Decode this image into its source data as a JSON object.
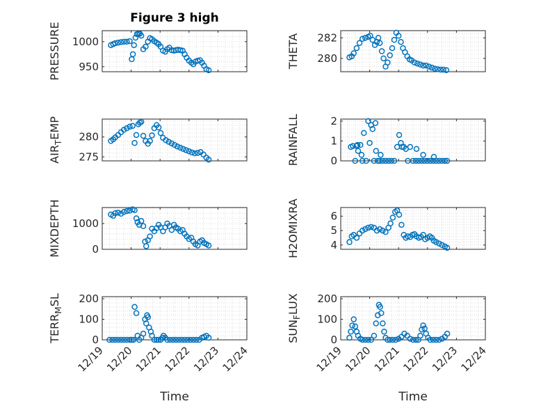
{
  "figure": {
    "title": "Figure 3 high"
  },
  "colors": {
    "marker": "#0072BD",
    "axis": "#262626",
    "grid": "#dcdcdc"
  },
  "chart_data": [
    {
      "type": "scatter",
      "id": "pressure",
      "ylabel": "PRESSURE",
      "xlim": [
        0,
        5
      ],
      "ylim": [
        940,
        1022
      ],
      "yticks": [
        950,
        1000
      ],
      "ytick_labels": [
        "950",
        "1000"
      ],
      "xticks": [
        0,
        1,
        2,
        3,
        4,
        5
      ],
      "xtick_labels": [],
      "grid": true,
      "x": [
        0.3,
        0.38,
        0.45,
        0.55,
        0.65,
        0.75,
        0.85,
        0.95,
        1.02,
        1.06,
        1.1,
        1.15,
        1.2,
        1.25,
        1.3,
        1.35,
        1.42,
        1.5,
        1.58,
        1.65,
        1.72,
        1.8,
        1.88,
        1.95,
        2.02,
        2.1,
        2.18,
        2.25,
        2.32,
        2.4,
        2.48,
        2.55,
        2.62,
        2.7,
        2.78,
        2.85,
        2.92,
        3.0,
        3.08,
        3.15,
        3.22,
        3.3,
        3.38,
        3.45,
        3.52,
        3.6,
        3.68
      ],
      "y": [
        993,
        995,
        997,
        998,
        999,
        1000,
        1000,
        1001,
        965,
        975,
        993,
        1008,
        1015,
        1016,
        1016,
        1012,
        985,
        990,
        1000,
        1007,
        1005,
        1001,
        998,
        995,
        990,
        982,
        980,
        985,
        988,
        983,
        982,
        983,
        984,
        983,
        982,
        975,
        968,
        962,
        958,
        955,
        960,
        962,
        963,
        958,
        952,
        945,
        943
      ]
    },
    {
      "type": "scatter",
      "id": "theta",
      "ylabel": "THETA",
      "xlim": [
        0,
        5
      ],
      "ylim": [
        278.7,
        282.7
      ],
      "yticks": [
        280,
        282
      ],
      "ytick_labels": [
        "280",
        "282"
      ],
      "xticks": [
        0,
        1,
        2,
        3,
        4,
        5
      ],
      "xtick_labels": [],
      "grid": true,
      "x": [
        0.3,
        0.38,
        0.45,
        0.55,
        0.65,
        0.75,
        0.85,
        0.95,
        1.02,
        1.1,
        1.18,
        1.25,
        1.3,
        1.35,
        1.42,
        1.48,
        1.55,
        1.62,
        1.7,
        1.78,
        1.85,
        1.92,
        2.0,
        2.08,
        2.15,
        2.22,
        2.3,
        2.38,
        2.45,
        2.55,
        2.65,
        2.75,
        2.85,
        2.95,
        3.05,
        3.15,
        3.25,
        3.35,
        3.45,
        3.55,
        3.65
      ],
      "y": [
        280.1,
        280.2,
        280.5,
        281.0,
        281.5,
        281.9,
        282.0,
        282.1,
        282.2,
        281.8,
        281.3,
        281.6,
        282.0,
        281.5,
        280.7,
        280.0,
        279.2,
        279.6,
        280.3,
        281.0,
        281.8,
        282.5,
        282.2,
        281.6,
        281.0,
        280.6,
        280.2,
        279.9,
        279.8,
        279.6,
        279.5,
        279.4,
        279.3,
        279.3,
        279.2,
        279.1,
        279.0,
        278.95,
        278.9,
        278.9,
        278.85
      ]
    },
    {
      "type": "scatter",
      "id": "air_temp",
      "ylabel": "AIR_TEMP",
      "xlim": [
        0,
        5
      ],
      "ylim": [
        274,
        284.5
      ],
      "yticks": [
        275,
        280
      ],
      "ytick_labels": [
        "275",
        "280"
      ],
      "xticks": [
        0,
        1,
        2,
        3,
        4,
        5
      ],
      "xtick_labels": [],
      "grid": true,
      "x": [
        0.3,
        0.38,
        0.45,
        0.55,
        0.65,
        0.75,
        0.85,
        0.95,
        1.05,
        1.12,
        1.18,
        1.25,
        1.3,
        1.35,
        1.42,
        1.5,
        1.58,
        1.65,
        1.72,
        1.8,
        1.88,
        1.95,
        2.02,
        2.1,
        2.2,
        2.3,
        2.4,
        2.5,
        2.6,
        2.7,
        2.8,
        2.9,
        3.0,
        3.1,
        3.2,
        3.3,
        3.4,
        3.5,
        3.6,
        3.68
      ],
      "y": [
        279.0,
        279.4,
        279.9,
        280.5,
        281.2,
        281.8,
        282.2,
        282.6,
        282.8,
        278.5,
        280.5,
        283.2,
        283.6,
        283.8,
        280.3,
        279.0,
        278.3,
        279.0,
        280.4,
        282.2,
        283.0,
        282.4,
        281.0,
        279.8,
        279.2,
        278.8,
        278.4,
        278.0,
        277.6,
        277.3,
        277.0,
        276.7,
        276.4,
        276.1,
        275.9,
        276.0,
        276.2,
        275.6,
        274.8,
        274.3
      ]
    },
    {
      "type": "scatter",
      "id": "rainfall",
      "ylabel": "RAINFALL",
      "xlim": [
        0,
        5
      ],
      "ylim": [
        0,
        2.1
      ],
      "yticks": [
        0,
        1,
        2
      ],
      "ytick_labels": [
        "0",
        "1",
        "2"
      ],
      "xticks": [
        0,
        1,
        2,
        3,
        4,
        5
      ],
      "xtick_labels": [],
      "grid": true,
      "x": [
        0.35,
        0.42,
        0.5,
        0.55,
        0.6,
        0.68,
        0.75,
        0.8,
        0.88,
        0.95,
        1.0,
        1.05,
        1.1,
        1.15,
        1.2,
        1.28,
        1.35,
        1.45,
        1.55,
        1.65,
        1.75,
        1.85,
        1.95,
        2.02,
        2.08,
        2.12,
        2.18,
        2.25,
        2.32,
        2.4,
        2.5,
        2.6,
        2.7,
        2.8,
        2.9,
        3.0,
        3.1,
        3.2,
        3.3,
        3.4,
        3.5,
        3.6,
        3.68,
        0.58,
        0.72,
        1.22,
        1.38,
        2.62,
        2.85,
        3.22
      ],
      "y": [
        0.7,
        0.75,
        0.0,
        0.75,
        0.5,
        0.8,
        0.0,
        1.4,
        0.0,
        2.0,
        0.9,
        1.8,
        1.6,
        0.0,
        1.9,
        0.0,
        0.0,
        0.0,
        0.0,
        0.0,
        0.0,
        0.0,
        0.7,
        1.3,
        0.9,
        0.7,
        0.7,
        0.6,
        0.0,
        0.7,
        0.0,
        0.0,
        0.0,
        0.0,
        0.0,
        0.0,
        0.0,
        0.0,
        0.0,
        0.0,
        0.0,
        0.0,
        0.0,
        0.8,
        0.3,
        0.5,
        0.3,
        0.6,
        0.3,
        0.2
      ]
    },
    {
      "type": "scatter",
      "id": "mixdepth",
      "ylabel": "MIXDEPTH",
      "xlim": [
        0,
        5
      ],
      "ylim": [
        0,
        1620
      ],
      "yticks": [
        0,
        1000
      ],
      "ytick_labels": [
        "0",
        "1000"
      ],
      "xticks": [
        0,
        1,
        2,
        3,
        4,
        5
      ],
      "xtick_labels": [],
      "grid": true,
      "x": [
        0.3,
        0.38,
        0.45,
        0.55,
        0.65,
        0.75,
        0.85,
        0.95,
        1.05,
        1.12,
        1.18,
        1.22,
        1.28,
        1.35,
        1.42,
        1.48,
        1.52,
        1.58,
        1.65,
        1.72,
        1.8,
        1.88,
        1.95,
        2.02,
        2.1,
        2.18,
        2.25,
        2.32,
        2.4,
        2.48,
        2.55,
        2.62,
        2.7,
        2.78,
        2.85,
        2.92,
        3.0,
        3.08,
        3.15,
        3.22,
        3.3,
        3.38,
        3.45,
        3.52,
        3.6,
        3.68
      ],
      "y": [
        1350,
        1300,
        1400,
        1420,
        1380,
        1450,
        1480,
        1500,
        1550,
        1520,
        1200,
        1050,
        950,
        1100,
        900,
        300,
        120,
        350,
        500,
        800,
        700,
        820,
        950,
        850,
        700,
        850,
        1000,
        900,
        750,
        950,
        850,
        800,
        700,
        750,
        600,
        500,
        400,
        450,
        300,
        200,
        150,
        300,
        350,
        250,
        200,
        150
      ]
    },
    {
      "type": "scatter",
      "id": "h2omixra",
      "ylabel": "H2OMIXRA",
      "xlim": [
        0,
        5
      ],
      "ylim": [
        3.7,
        6.6
      ],
      "yticks": [
        4,
        5,
        6
      ],
      "ytick_labels": [
        "4",
        "5",
        "6"
      ],
      "xticks": [
        0,
        1,
        2,
        3,
        4,
        5
      ],
      "xtick_labels": [],
      "grid": true,
      "x": [
        0.3,
        0.38,
        0.45,
        0.55,
        0.65,
        0.75,
        0.85,
        0.95,
        1.05,
        1.15,
        1.25,
        1.35,
        1.45,
        1.55,
        1.65,
        1.72,
        1.8,
        1.88,
        1.95,
        2.02,
        2.1,
        2.18,
        2.25,
        2.32,
        2.4,
        2.48,
        2.55,
        2.62,
        2.7,
        2.78,
        2.85,
        2.92,
        3.0,
        3.08,
        3.15,
        3.22,
        3.3,
        3.4,
        3.5,
        3.6,
        3.68
      ],
      "y": [
        4.2,
        4.6,
        4.7,
        4.5,
        4.8,
        5.0,
        5.1,
        5.2,
        5.25,
        5.2,
        5.0,
        5.1,
        5.0,
        4.9,
        5.2,
        5.5,
        5.9,
        6.3,
        6.4,
        6.1,
        5.4,
        4.7,
        4.5,
        4.6,
        4.55,
        4.7,
        4.75,
        4.6,
        4.5,
        4.55,
        4.7,
        4.4,
        4.5,
        4.6,
        4.5,
        4.3,
        4.2,
        4.1,
        4.0,
        3.9,
        3.8
      ]
    },
    {
      "type": "scatter",
      "id": "terr_msl",
      "ylabel": "TERR_MSL",
      "xlim": [
        0,
        5
      ],
      "ylim": [
        0,
        210
      ],
      "yticks": [
        0,
        100,
        200
      ],
      "ytick_labels": [
        "0",
        "100",
        "200"
      ],
      "xticks": [
        0,
        1,
        2,
        3,
        4,
        5
      ],
      "xtick_labels": [
        "12/19",
        "12/20",
        "12/21",
        "12/22",
        "12/23",
        "12/24"
      ],
      "xlabel": "Time",
      "grid": true,
      "x": [
        0.25,
        0.35,
        0.45,
        0.55,
        0.65,
        0.75,
        0.85,
        0.95,
        1.02,
        1.08,
        1.12,
        1.18,
        1.22,
        1.28,
        1.35,
        1.42,
        1.48,
        1.52,
        1.55,
        1.58,
        1.62,
        1.68,
        1.72,
        1.8,
        1.88,
        1.95,
        2.02,
        2.08,
        2.12,
        2.18,
        2.25,
        2.35,
        2.45,
        2.55,
        2.65,
        2.75,
        2.85,
        2.95,
        3.05,
        3.15,
        3.25,
        3.35,
        3.45,
        3.52,
        3.6,
        3.68
      ],
      "y": [
        0,
        0,
        0,
        0,
        0,
        0,
        0,
        0,
        0,
        0,
        160,
        130,
        20,
        0,
        10,
        30,
        100,
        80,
        120,
        110,
        60,
        40,
        20,
        0,
        0,
        0,
        0,
        10,
        20,
        10,
        0,
        0,
        0,
        0,
        0,
        0,
        0,
        0,
        0,
        0,
        0,
        0,
        10,
        15,
        20,
        10
      ]
    },
    {
      "type": "scatter",
      "id": "sun_flux",
      "ylabel": "SUN_FLUX",
      "xlim": [
        0,
        5
      ],
      "ylim": [
        0,
        210
      ],
      "yticks": [
        0,
        100,
        200
      ],
      "ytick_labels": [
        "0",
        "100",
        "200"
      ],
      "xticks": [
        0,
        1,
        2,
        3,
        4,
        5
      ],
      "xtick_labels": [
        "12/19",
        "12/20",
        "12/21",
        "12/22",
        "12/23",
        "12/24"
      ],
      "xlabel": "Time",
      "grid": true,
      "x": [
        0.3,
        0.35,
        0.4,
        0.45,
        0.5,
        0.55,
        0.6,
        0.68,
        0.75,
        0.85,
        0.95,
        1.05,
        1.15,
        1.22,
        1.28,
        1.32,
        1.36,
        1.4,
        1.45,
        1.5,
        1.55,
        1.62,
        1.7,
        1.8,
        1.9,
        2.0,
        2.1,
        2.2,
        2.3,
        2.4,
        2.5,
        2.6,
        2.68,
        2.75,
        2.8,
        2.85,
        2.9,
        2.95,
        3.02,
        3.1,
        3.2,
        3.3,
        3.4,
        3.5,
        3.6,
        3.68
      ],
      "y": [
        10,
        40,
        70,
        100,
        65,
        40,
        20,
        5,
        0,
        0,
        0,
        0,
        20,
        80,
        120,
        170,
        160,
        130,
        80,
        40,
        10,
        0,
        0,
        0,
        0,
        5,
        15,
        30,
        20,
        5,
        0,
        0,
        0,
        20,
        50,
        70,
        55,
        30,
        10,
        0,
        0,
        0,
        0,
        5,
        15,
        30
      ]
    }
  ]
}
